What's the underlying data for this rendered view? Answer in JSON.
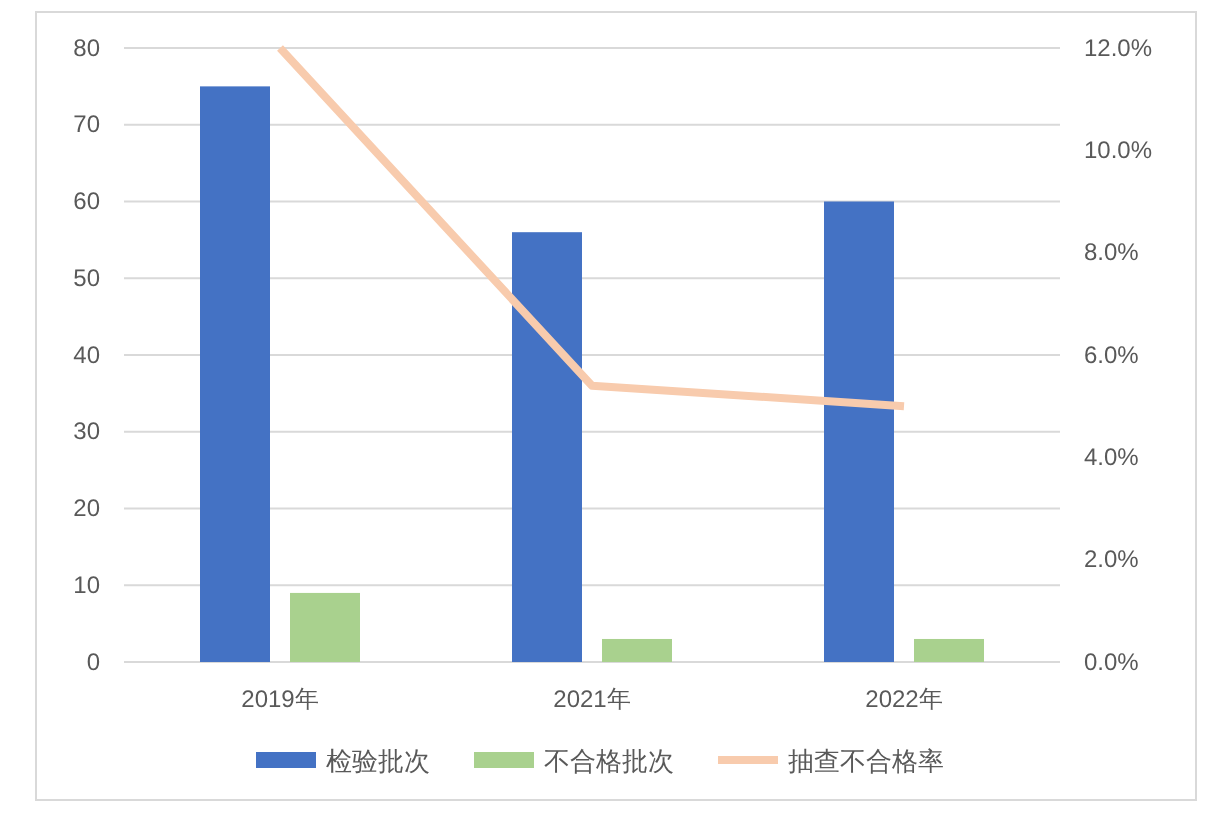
{
  "chart_data": {
    "type": "bar",
    "categories": [
      "2019年",
      "2021年",
      "2022年"
    ],
    "series": [
      {
        "name": "检验批次",
        "color": "#4472c4",
        "values": [
          75,
          56,
          60
        ]
      },
      {
        "name": "不合格批次",
        "color": "#a9d18e",
        "values": [
          9,
          3,
          3
        ]
      },
      {
        "name": "抽查不合格率",
        "type": "line",
        "axis": "y2",
        "color": "#f8cbad",
        "values": [
          12.0,
          5.4,
          5.0
        ]
      }
    ],
    "ylim": [
      0,
      80
    ],
    "yticks": [
      0,
      10,
      20,
      30,
      40,
      50,
      60,
      70,
      80
    ],
    "y2lim": [
      0,
      12
    ],
    "y2ticks": [
      {
        "value": 0,
        "label": "0.0%"
      },
      {
        "value": 2,
        "label": "2.0%"
      },
      {
        "value": 4,
        "label": "4.0%"
      },
      {
        "value": 6,
        "label": "6.0%"
      },
      {
        "value": 8,
        "label": "8.0%"
      },
      {
        "value": 10,
        "label": "10.0%"
      },
      {
        "value": 12,
        "label": "12.0%"
      }
    ],
    "grid": "y",
    "legend": "bottom",
    "marker": "none",
    "line_style": "solid"
  }
}
